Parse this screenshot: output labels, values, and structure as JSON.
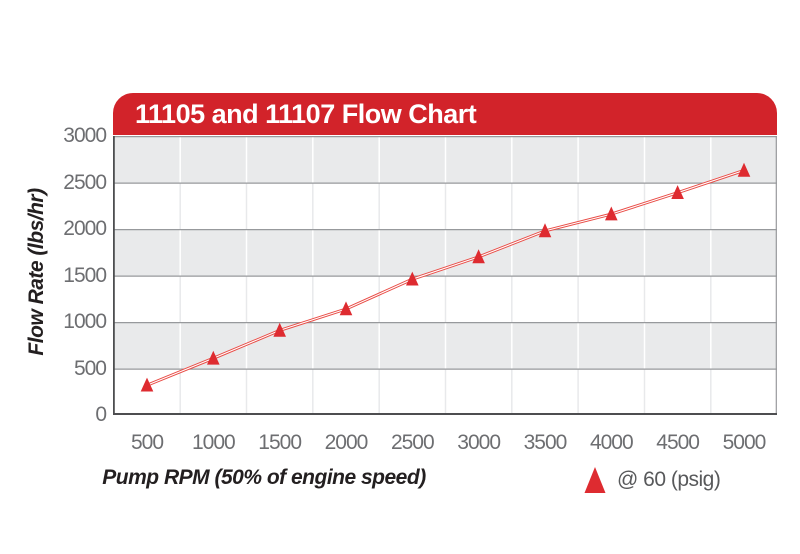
{
  "chart_data": {
    "type": "line",
    "title": "11105 and 11107 Flow Chart",
    "xlabel": "Pump RPM (50% of engine speed)",
    "ylabel": "Flow Rate (lbs/hr)",
    "x": [
      500,
      1000,
      1500,
      2000,
      2500,
      3000,
      3500,
      4000,
      4500,
      5000
    ],
    "series": [
      {
        "name": "@ 60 (psig)",
        "marker": "triangle",
        "values": [
          320,
          610,
          910,
          1140,
          1460,
          1700,
          1980,
          2160,
          2390,
          2630
        ]
      }
    ],
    "xlim": [
      500,
      5000
    ],
    "ylim": [
      0,
      3000
    ],
    "x_ticks": [
      500,
      1000,
      1500,
      2000,
      2500,
      3000,
      3500,
      4000,
      4500,
      5000
    ],
    "y_ticks": [
      0,
      500,
      1000,
      1500,
      2000,
      2500,
      3000
    ],
    "grid": "horizontal gridlines every 500 with alternating gray/white bands and faint vertical column separators",
    "legend": {
      "label": "@ 60 (psig)",
      "position": "below-chart-right",
      "marker": "triangle"
    },
    "colors": {
      "banner_red": "#D2232A",
      "title_text": "#FFFFFF",
      "marker_red": "#DE2B30",
      "line_red": "#E94B45",
      "band_gray": "#E9EAEB",
      "grid_gray": "#97999C",
      "vertical_grid_on_gray": "#FFFFFF",
      "vertical_grid_on_white": "#E8E9EB",
      "axis_dark": "#4D4E50",
      "tick_text": "#6D6E71",
      "axis_label_text": "#231F20",
      "legend_text": "#58595B"
    }
  }
}
